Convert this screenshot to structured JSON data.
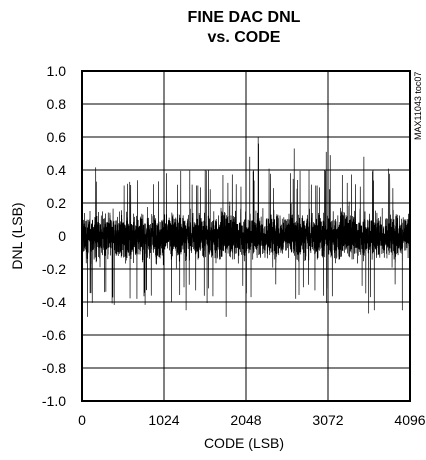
{
  "chart_data": {
    "type": "line",
    "title_lines": [
      "FINE DAC DNL",
      "vs. CODE"
    ],
    "xlabel": "CODE (LSB)",
    "ylabel": "DNL (LSB)",
    "xlim": [
      0,
      4096
    ],
    "ylim": [
      -1.0,
      1.0
    ],
    "x_ticks": [
      0,
      1024,
      2048,
      3072,
      4096
    ],
    "x_tick_labels": [
      "0",
      "1024",
      "2048",
      "3072",
      "4096"
    ],
    "y_ticks": [
      1.0,
      0.8,
      0.6,
      0.4,
      0.2,
      0,
      -0.2,
      -0.4,
      -0.6,
      -0.8,
      -1.0
    ],
    "y_tick_labels": [
      "1.0",
      "0.8",
      "0.6",
      "0.4",
      "0.2",
      "0",
      "-0.2",
      "-0.4",
      "-0.6",
      "-0.8",
      "-1.0"
    ],
    "grid": true,
    "annotation": "MAX11043 toc07",
    "series": [
      {
        "color": "#000000",
        "noise_band": [
          -0.25,
          0.25
        ],
        "envelope": [
          -0.5,
          0.6
        ],
        "peaks": [
          {
            "x": 2200,
            "y": 0.6
          },
          {
            "x": 2205,
            "y": 0.56
          },
          {
            "x": 2650,
            "y": 0.53
          },
          {
            "x": 3050,
            "y": 0.51
          },
          {
            "x": 3100,
            "y": 0.49
          },
          {
            "x": 2095,
            "y": 0.48
          },
          {
            "x": 3520,
            "y": 0.48
          },
          {
            "x": 70,
            "y": -0.49
          },
          {
            "x": 1800,
            "y": -0.49
          },
          {
            "x": 3580,
            "y": -0.47
          },
          {
            "x": 1300,
            "y": -0.45
          },
          {
            "x": 3650,
            "y": -0.45
          },
          {
            "x": 4000,
            "y": -0.45
          }
        ]
      }
    ]
  }
}
